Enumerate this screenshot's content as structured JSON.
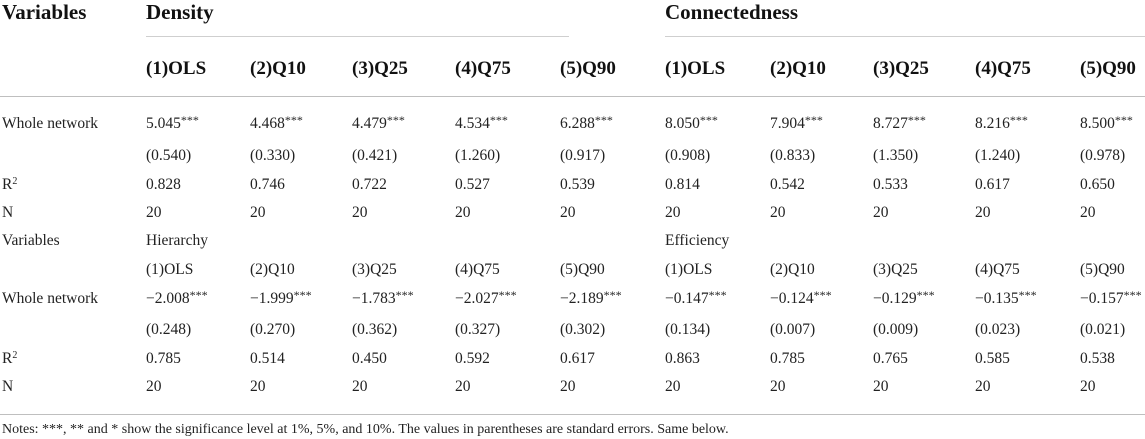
{
  "table": {
    "corner_label": "Variables",
    "group_left": "Density",
    "group_right": "Connectedness",
    "columns_top": [
      "(1)OLS",
      "(2)Q10",
      "(3)Q25",
      "(4)Q75",
      "(5)Q90",
      "(1)OLS",
      "(2)Q10",
      "(3)Q25",
      "(4)Q75",
      "(5)Q90"
    ],
    "rows_top": [
      {
        "label": "Whole network",
        "cells": [
          "5.045",
          "4.468",
          "4.479",
          "4.534",
          "6.288",
          "8.050",
          "7.904",
          "8.727",
          "8.216",
          "8.500"
        ],
        "stars": [
          "***",
          "***",
          "***",
          "***",
          "***",
          "***",
          "***",
          "***",
          "***",
          "***"
        ]
      },
      {
        "label": "",
        "cells": [
          "(0.540)",
          "(0.330)",
          "(0.421)",
          "(1.260)",
          "(0.917)",
          "(0.908)",
          "(0.833)",
          "(1.350)",
          "(1.240)",
          "(0.978)"
        ]
      },
      {
        "label": "R",
        "label_sup": "2",
        "cells": [
          "0.828",
          "0.746",
          "0.722",
          "0.527",
          "0.539",
          "0.814",
          "0.542",
          "0.533",
          "0.617",
          "0.650"
        ]
      },
      {
        "label": "N",
        "cells": [
          "20",
          "20",
          "20",
          "20",
          "20",
          "20",
          "20",
          "20",
          "20",
          "20"
        ]
      }
    ],
    "sub_header": {
      "label": "Variables",
      "group_left": "Hierarchy",
      "group_right": "Efficiency",
      "columns": [
        "(1)OLS",
        "(2)Q10",
        "(3)Q25",
        "(4)Q75",
        "(5)Q90",
        "(1)OLS",
        "(2)Q10",
        "(3)Q25",
        "(4)Q75",
        "(5)Q90"
      ]
    },
    "rows_bottom": [
      {
        "label": "Whole network",
        "cells": [
          "−2.008",
          "−1.999",
          "−1.783",
          "−2.027",
          "−2.189",
          "−0.147",
          "−0.124",
          "−0.129",
          "−0.135",
          "−0.157"
        ],
        "stars": [
          "***",
          "***",
          "***",
          "***",
          "***",
          "***",
          "***",
          "***",
          "***",
          "***"
        ]
      },
      {
        "label": "",
        "cells": [
          "(0.248)",
          "(0.270)",
          "(0.362)",
          "(0.327)",
          "(0.302)",
          "(0.134)",
          "(0.007)",
          "(0.009)",
          "(0.023)",
          "(0.021)"
        ]
      },
      {
        "label": "R",
        "label_sup": "2",
        "cells": [
          "0.785",
          "0.514",
          "0.450",
          "0.592",
          "0.617",
          "0.863",
          "0.785",
          "0.765",
          "0.585",
          "0.538"
        ]
      },
      {
        "label": "N",
        "cells": [
          "20",
          "20",
          "20",
          "20",
          "20",
          "20",
          "20",
          "20",
          "20",
          "20"
        ]
      }
    ],
    "notes": "Notes: ***, ** and * show the significance level at 1%, 5%, and 10%. The values in parentheses are standard errors. Same below."
  }
}
